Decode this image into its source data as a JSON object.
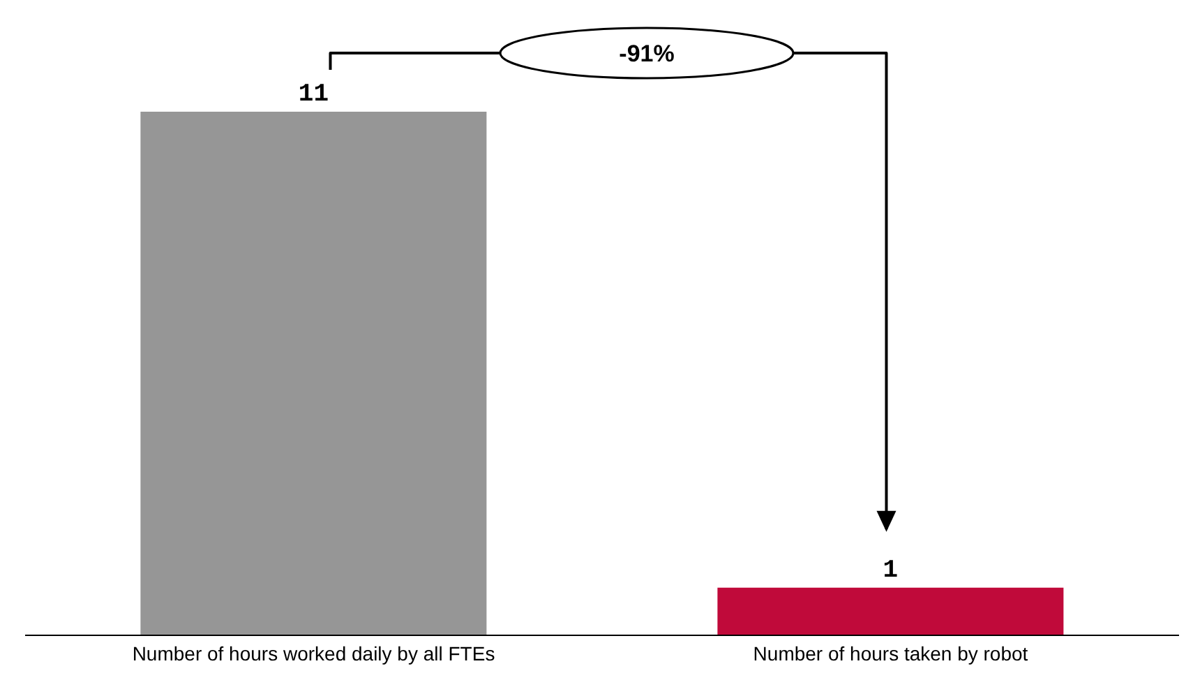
{
  "chart_data": {
    "type": "bar",
    "categories": [
      "Number of hours worked daily by all FTEs",
      "Number of hours taken by robot"
    ],
    "values": [
      11,
      1
    ],
    "colors": [
      "#969696",
      "#c00a3a"
    ],
    "data_labels": true,
    "annotations": [
      "-91%"
    ]
  }
}
